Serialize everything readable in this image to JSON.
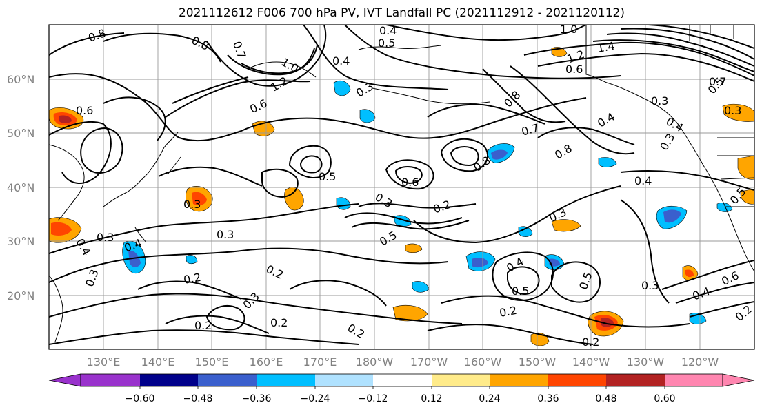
{
  "title": "2021112612 F006 700 hPa PV, IVT Landfall PC (2021112912 - 2021120112)",
  "lat_labels": [
    "60°N",
    "50°N",
    "40°N",
    "30°N",
    "20°N"
  ],
  "lon_labels": [
    "130°E",
    "140°E",
    "150°E",
    "160°E",
    "170°E",
    "180°W",
    "170°W",
    "160°W",
    "150°W",
    "140°W",
    "130°W",
    "120°W"
  ],
  "colorbar": {
    "tick_labels": [
      "−0.60",
      "−0.48",
      "−0.36",
      "−0.24",
      "−0.12",
      "0.12",
      "0.24",
      "0.36",
      "0.48",
      "0.60"
    ],
    "colors": [
      "#9932cc",
      "#00008b",
      "#3a5fcd",
      "#00bfff",
      "#b0e2ff",
      "#ffffff",
      "#ffeb8a",
      "#ffa500",
      "#ff4500",
      "#b22222",
      "#ff86b0"
    ]
  },
  "contour_labels": [
    "0.8",
    "0.8",
    "0.7",
    "0.6",
    "1.0",
    "1.2",
    "0.4",
    "0.3",
    "0.4",
    "0.5",
    "1.0",
    "1.4",
    "1.2",
    "0.6",
    "0.7",
    "0.8",
    "0.3",
    "0.5",
    "0.3",
    "0.4",
    "0.3",
    "0.6",
    "0.5",
    "0.6",
    "0.8",
    "0.7",
    "0.8",
    "0.4",
    "0.4",
    "0.3",
    "0.2",
    "0.3",
    "0.5",
    "0.3",
    "0.3",
    "0.4",
    "0.3",
    "0.4",
    "0.3",
    "0.2",
    "0.2",
    "0.3",
    "0.2",
    "0.2",
    "0.2",
    "0.4",
    "0.5",
    "0.5",
    "0.2",
    "0.2",
    "0.3",
    "0.4",
    "0.6",
    "0.2",
    "0.5"
  ]
}
